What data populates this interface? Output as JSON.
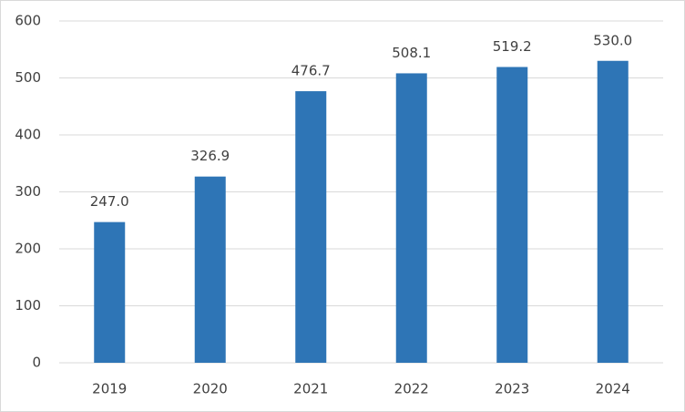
{
  "chart_data": {
    "type": "bar",
    "categories": [
      "2019",
      "2020",
      "2021",
      "2022",
      "2023",
      "2024"
    ],
    "values": [
      247.0,
      326.9,
      476.7,
      508.1,
      519.2,
      530.0
    ],
    "value_labels": [
      "247.0",
      "326.9",
      "476.7",
      "508.1",
      "519.2",
      "530.0"
    ],
    "color": "#2e75b6",
    "ylim": [
      0,
      600
    ],
    "yticks": [
      0,
      100,
      200,
      300,
      400,
      500,
      600
    ],
    "grid": true
  }
}
